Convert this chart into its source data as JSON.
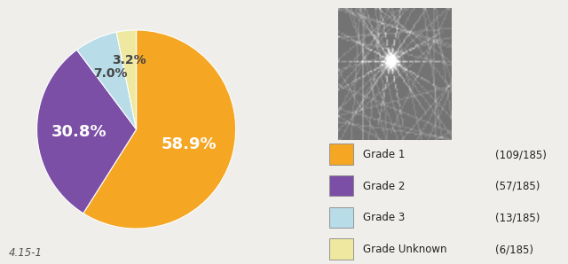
{
  "slices": [
    58.9,
    30.8,
    7.0,
    3.2
  ],
  "labels": [
    "58.9%",
    "30.8%",
    "7.0%",
    "3.2%"
  ],
  "colors": [
    "#F5A623",
    "#7B4FA6",
    "#B8DCE8",
    "#EEE8A0"
  ],
  "legend_labels": [
    "Grade 1",
    "Grade 2",
    "Grade 3",
    "Grade Unknown"
  ],
  "legend_counts": [
    "(109/185)",
    "(57/185)",
    "(13/185)",
    "(6/185)"
  ],
  "figure_label": "4.15-1",
  "background_color": "#f0eeea",
  "label_colors": [
    "white",
    "white",
    "#555555",
    "#555555"
  ],
  "label_fontsizes": [
    13,
    13,
    10,
    10
  ]
}
